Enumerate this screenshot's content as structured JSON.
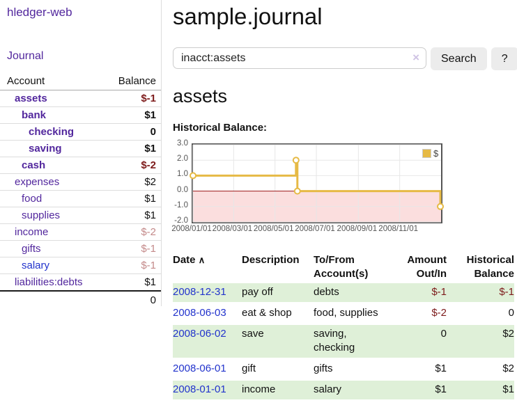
{
  "sidebar": {
    "brand": "hledger-web",
    "journal_label": "Journal",
    "header": {
      "account": "Account",
      "balance": "Balance"
    },
    "accounts": [
      {
        "label": "assets",
        "balance": "$-1",
        "indent": 1,
        "bold": true,
        "tone": "neg"
      },
      {
        "label": "bank",
        "balance": "$1",
        "indent": 2,
        "bold": true,
        "tone": ""
      },
      {
        "label": "checking",
        "balance": "0",
        "indent": 3,
        "bold": true,
        "tone": ""
      },
      {
        "label": "saving",
        "balance": "$1",
        "indent": 3,
        "bold": true,
        "tone": ""
      },
      {
        "label": "cash",
        "balance": "$-2",
        "indent": 2,
        "bold": true,
        "tone": "neg"
      },
      {
        "label": "expenses",
        "balance": "$2",
        "indent": 1,
        "bold": false,
        "tone": ""
      },
      {
        "label": "food",
        "balance": "$1",
        "indent": 2,
        "bold": false,
        "tone": ""
      },
      {
        "label": "supplies",
        "balance": "$1",
        "indent": 2,
        "bold": false,
        "tone": ""
      },
      {
        "label": "income",
        "balance": "$-2",
        "indent": 1,
        "bold": false,
        "tone": "neg-soft"
      },
      {
        "label": "gifts",
        "balance": "$-1",
        "indent": 2,
        "bold": false,
        "tone": "neg-soft"
      },
      {
        "label": "salary",
        "balance": "$-1",
        "indent": 2,
        "bold": false,
        "tone": "neg-soft",
        "link_tone": "blue"
      },
      {
        "label": "liabilities:debts",
        "balance": "$1",
        "indent": 1,
        "bold": false,
        "tone": ""
      }
    ],
    "total": "0"
  },
  "header": {
    "title": "sample.journal"
  },
  "search": {
    "value": "inacct:assets",
    "clear_icon": "×",
    "button_label": "Search",
    "help_label": "?"
  },
  "main": {
    "heading": "assets",
    "chart_label": "Historical Balance:"
  },
  "chart_data": {
    "type": "line",
    "title": "Historical Balance",
    "series": [
      {
        "name": "$",
        "color": "#e6ba45",
        "step": true,
        "points": [
          {
            "x": "2008-01-01",
            "y": 1
          },
          {
            "x": "2008-06-01",
            "y": 2
          },
          {
            "x": "2008-06-03",
            "y": 0
          },
          {
            "x": "2008-12-31",
            "y": -1
          }
        ]
      }
    ],
    "x_domain": [
      "2008-01-01",
      "2009-01-01"
    ],
    "x_ticks": [
      {
        "label": "2008/01/01",
        "date": "2008-01-01"
      },
      {
        "label": "2008/03/01",
        "date": "2008-03-01"
      },
      {
        "label": "2008/05/01",
        "date": "2008-05-01"
      },
      {
        "label": "2008/07/01",
        "date": "2008-07-01"
      },
      {
        "label": "2008/09/01",
        "date": "2008-09-01"
      },
      {
        "label": "2008/11/01",
        "date": "2008-11-01"
      }
    ],
    "y_ticks": [
      {
        "label": "3.0",
        "value": 3
      },
      {
        "label": "2.0",
        "value": 2
      },
      {
        "label": "1.0",
        "value": 1
      },
      {
        "label": "0.0",
        "value": 0
      },
      {
        "label": "-1.0",
        "value": -1
      },
      {
        "label": "-2.0",
        "value": -2
      }
    ],
    "ylim": [
      -2,
      3
    ],
    "grid": true,
    "legend": {
      "position": "top-right",
      "label": "$"
    },
    "colors": {
      "line": "#e6ba45",
      "marker_fill": "#ffffff",
      "negative_region_fill": "#fbdede",
      "zero_line": "#9e1616",
      "gridline": "#e7e7e7",
      "plot_border": "#545454"
    }
  },
  "register": {
    "columns": [
      "Date",
      "Description",
      "To/From Account(s)",
      "Amount Out/In",
      "Historical Balance"
    ],
    "sort_icon": "∧",
    "rows": [
      {
        "date": "2008-12-31",
        "description": "pay off",
        "accounts": "debts",
        "amount": "$-1",
        "amount_tone": "neg",
        "balance": "$-1",
        "balance_tone": "neg"
      },
      {
        "date": "2008-06-03",
        "description": "eat & shop",
        "accounts": "food, supplies",
        "amount": "$-2",
        "amount_tone": "neg",
        "balance": "0",
        "balance_tone": ""
      },
      {
        "date": "2008-06-02",
        "description": "save",
        "accounts": "saving, checking",
        "amount": "0",
        "amount_tone": "",
        "balance": "$2",
        "balance_tone": ""
      },
      {
        "date": "2008-06-01",
        "description": "gift",
        "accounts": "gifts",
        "amount": "$1",
        "amount_tone": "",
        "balance": "$2",
        "balance_tone": ""
      },
      {
        "date": "2008-01-01",
        "description": "income",
        "accounts": "salary",
        "amount": "$1",
        "amount_tone": "",
        "balance": "$1",
        "balance_tone": ""
      }
    ]
  },
  "colors": {
    "link_purple": "#52279d",
    "link_blue": "#2233cc",
    "negative_strong": "#7d1b1b",
    "negative_soft": "#c48a8a",
    "row_stripe_green": "#dff0d8",
    "button_gray": "#ececec"
  }
}
